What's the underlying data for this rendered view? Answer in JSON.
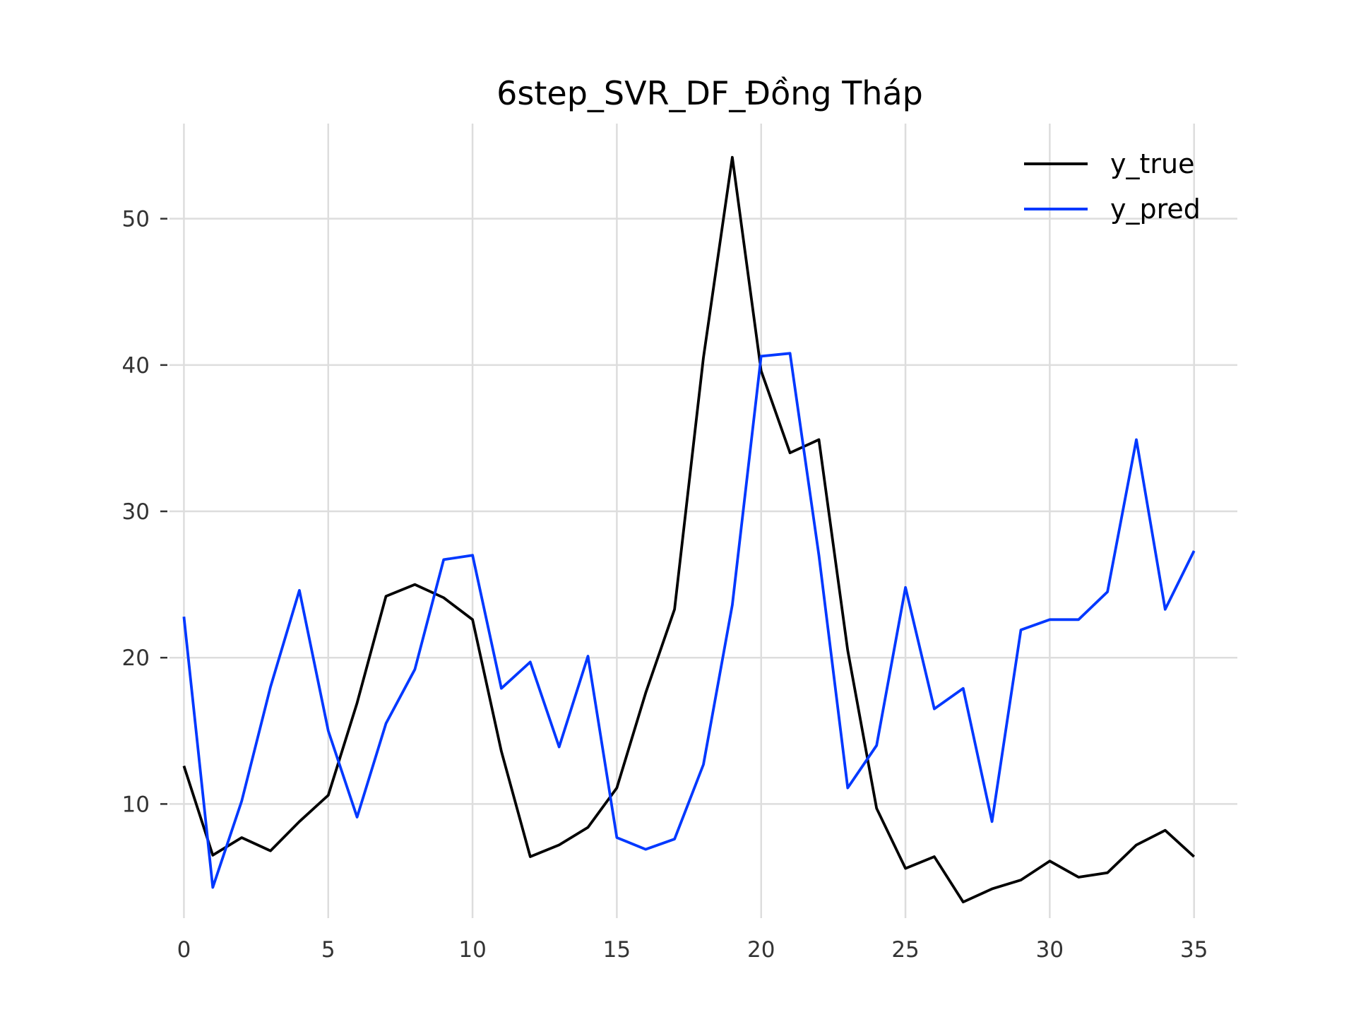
{
  "chart_data": {
    "type": "line",
    "title": "6step_SVR_DF_Đồng Tháp",
    "xlabel": "",
    "ylabel": "",
    "xlim": [
      -0.5,
      36.5
    ],
    "ylim": [
      2.2,
      56.5
    ],
    "xticks": [
      0,
      5,
      10,
      15,
      20,
      25,
      30,
      35
    ],
    "yticks": [
      10,
      20,
      30,
      40,
      50
    ],
    "grid": true,
    "legend_position": "top-right",
    "x": [
      0,
      1,
      2,
      3,
      4,
      5,
      6,
      7,
      8,
      9,
      10,
      11,
      12,
      13,
      14,
      15,
      16,
      17,
      18,
      19,
      20,
      21,
      22,
      23,
      24,
      25,
      26,
      27,
      28,
      29,
      30,
      31,
      32,
      33,
      34,
      35
    ],
    "series": [
      {
        "name": "y_true",
        "color": "#000000",
        "values": [
          12.6,
          6.5,
          7.7,
          6.8,
          8.8,
          10.6,
          16.9,
          24.2,
          25.0,
          24.1,
          22.6,
          13.6,
          6.4,
          7.2,
          8.4,
          11.1,
          17.6,
          23.3,
          40.5,
          54.2,
          39.6,
          34.0,
          34.9,
          20.5,
          9.7,
          5.6,
          6.4,
          3.3,
          4.2,
          4.8,
          6.1,
          5.0,
          5.3,
          7.2,
          8.2,
          6.4
        ]
      },
      {
        "name": "y_pred",
        "color": "#0038ff",
        "values": [
          22.8,
          4.3,
          10.2,
          18.0,
          24.6,
          15.0,
          9.1,
          15.5,
          19.2,
          26.7,
          27.0,
          17.9,
          19.7,
          13.9,
          20.1,
          7.7,
          6.9,
          7.6,
          12.7,
          23.6,
          40.6,
          40.8,
          27.0,
          11.1,
          14.0,
          24.8,
          16.5,
          17.9,
          8.8,
          21.9,
          22.6,
          22.6,
          24.5,
          34.9,
          23.3,
          27.3
        ]
      }
    ]
  }
}
